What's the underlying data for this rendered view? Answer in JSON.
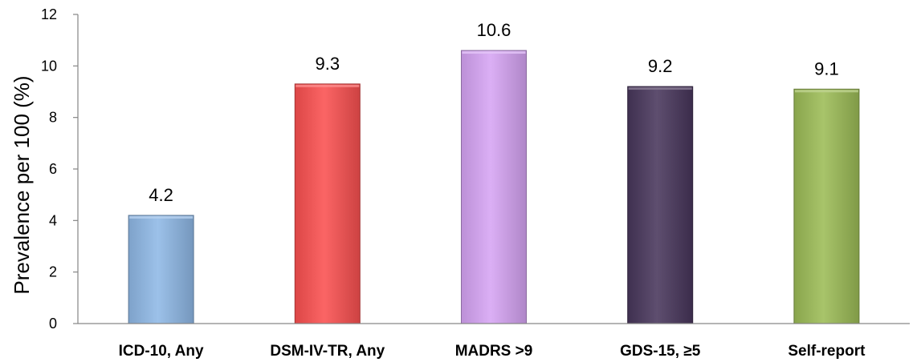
{
  "chart_data": {
    "type": "bar",
    "title": "",
    "xlabel": "",
    "ylabel": "Prevalence per 100 (%)",
    "ylim": [
      0,
      12
    ],
    "yticks": [
      0,
      2,
      4,
      6,
      8,
      10,
      12
    ],
    "categories": [
      "ICD-10, Any",
      "DSM-IV-TR, Any",
      "MADRS >9",
      "GDS-15, ≥5",
      "Self-report"
    ],
    "values": [
      4.2,
      9.3,
      10.6,
      9.2,
      9.1
    ],
    "data_labels": [
      "4.2",
      "9.3",
      "10.6",
      "9.2",
      "9.1"
    ],
    "colors": [
      "#8fb8e6",
      "#fa5050",
      "#d6a4f4",
      "#48365b",
      "#9cbc56"
    ],
    "grid": false,
    "legend": "none"
  }
}
